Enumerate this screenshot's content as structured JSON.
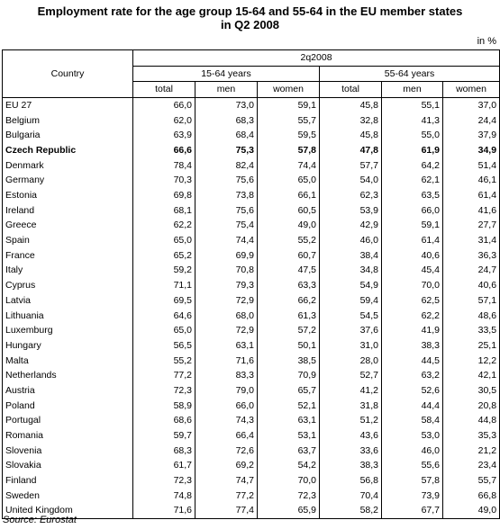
{
  "title_line1": "Employment rate for the age group 15-64 and 55-64 in the EU member states",
  "title_line2": "in Q2 2008",
  "unit": "in %",
  "header": {
    "country": "Country",
    "period": "2q2008",
    "group1": "15-64 years",
    "group2": "55-64 years",
    "sub": [
      "total",
      "men",
      "women",
      "total",
      "men",
      "women"
    ]
  },
  "rows": [
    {
      "country": "EU 27",
      "values": [
        "66,0",
        "73,0",
        "59,1",
        "45,8",
        "55,1",
        "37,0"
      ]
    },
    {
      "country": "Belgium",
      "values": [
        "62,0",
        "68,3",
        "55,7",
        "32,8",
        "41,3",
        "24,4"
      ]
    },
    {
      "country": "Bulgaria",
      "values": [
        "63,9",
        "68,4",
        "59,5",
        "45,8",
        "55,0",
        "37,9"
      ]
    },
    {
      "country": "Czech Republic",
      "values": [
        "66,6",
        "75,3",
        "57,8",
        "47,8",
        "61,9",
        "34,9"
      ],
      "bold": true
    },
    {
      "country": "Denmark",
      "values": [
        "78,4",
        "82,4",
        "74,4",
        "57,7",
        "64,2",
        "51,4"
      ]
    },
    {
      "country": "Germany",
      "values": [
        "70,3",
        "75,6",
        "65,0",
        "54,0",
        "62,1",
        "46,1"
      ]
    },
    {
      "country": "Estonia",
      "values": [
        "69,8",
        "73,8",
        "66,1",
        "62,3",
        "63,5",
        "61,4"
      ]
    },
    {
      "country": "Ireland",
      "values": [
        "68,1",
        "75,6",
        "60,5",
        "53,9",
        "66,0",
        "41,6"
      ]
    },
    {
      "country": "Greece",
      "values": [
        "62,2",
        "75,4",
        "49,0",
        "42,9",
        "59,1",
        "27,7"
      ]
    },
    {
      "country": "Spain",
      "values": [
        "65,0",
        "74,4",
        "55,2",
        "46,0",
        "61,4",
        "31,4"
      ]
    },
    {
      "country": "France",
      "values": [
        "65,2",
        "69,9",
        "60,7",
        "38,4",
        "40,6",
        "36,3"
      ]
    },
    {
      "country": "Italy",
      "values": [
        "59,2",
        "70,8",
        "47,5",
        "34,8",
        "45,4",
        "24,7"
      ]
    },
    {
      "country": "Cyprus",
      "values": [
        "71,1",
        "79,3",
        "63,3",
        "54,9",
        "70,0",
        "40,6"
      ]
    },
    {
      "country": "Latvia",
      "values": [
        "69,5",
        "72,9",
        "66,2",
        "59,4",
        "62,5",
        "57,1"
      ]
    },
    {
      "country": "Lithuania",
      "values": [
        "64,6",
        "68,0",
        "61,3",
        "54,5",
        "62,2",
        "48,6"
      ]
    },
    {
      "country": "Luxemburg",
      "values": [
        "65,0",
        "72,9",
        "57,2",
        "37,6",
        "41,9",
        "33,5"
      ]
    },
    {
      "country": "Hungary",
      "values": [
        "56,5",
        "63,1",
        "50,1",
        "31,0",
        "38,3",
        "25,1"
      ]
    },
    {
      "country": "Malta",
      "values": [
        "55,2",
        "71,6",
        "38,5",
        "28,0",
        "44,5",
        "12,2"
      ]
    },
    {
      "country": "Netherlands",
      "values": [
        "77,2",
        "83,3",
        "70,9",
        "52,7",
        "63,2",
        "42,1"
      ]
    },
    {
      "country": "Austria",
      "values": [
        "72,3",
        "79,0",
        "65,7",
        "41,2",
        "52,6",
        "30,5"
      ]
    },
    {
      "country": "Poland",
      "values": [
        "58,9",
        "66,0",
        "52,1",
        "31,8",
        "44,4",
        "20,8"
      ]
    },
    {
      "country": "Portugal",
      "values": [
        "68,6",
        "74,3",
        "63,1",
        "51,2",
        "58,4",
        "44,8"
      ]
    },
    {
      "country": "Romania",
      "values": [
        "59,7",
        "66,4",
        "53,1",
        "43,6",
        "53,0",
        "35,3"
      ]
    },
    {
      "country": "Slovenia",
      "values": [
        "68,3",
        "72,6",
        "63,7",
        "33,6",
        "46,0",
        "21,2"
      ]
    },
    {
      "country": "Slovakia",
      "values": [
        "61,7",
        "69,2",
        "54,2",
        "38,3",
        "55,6",
        "23,4"
      ]
    },
    {
      "country": "Finland",
      "values": [
        "72,3",
        "74,7",
        "70,0",
        "56,8",
        "57,8",
        "55,7"
      ]
    },
    {
      "country": "Sweden",
      "values": [
        "74,8",
        "77,2",
        "72,3",
        "70,4",
        "73,9",
        "66,8"
      ]
    },
    {
      "country": "United Kingdom",
      "values": [
        "71,6",
        "77,4",
        "65,9",
        "58,2",
        "67,7",
        "49,0"
      ]
    }
  ],
  "source": "Source: Eurostat"
}
